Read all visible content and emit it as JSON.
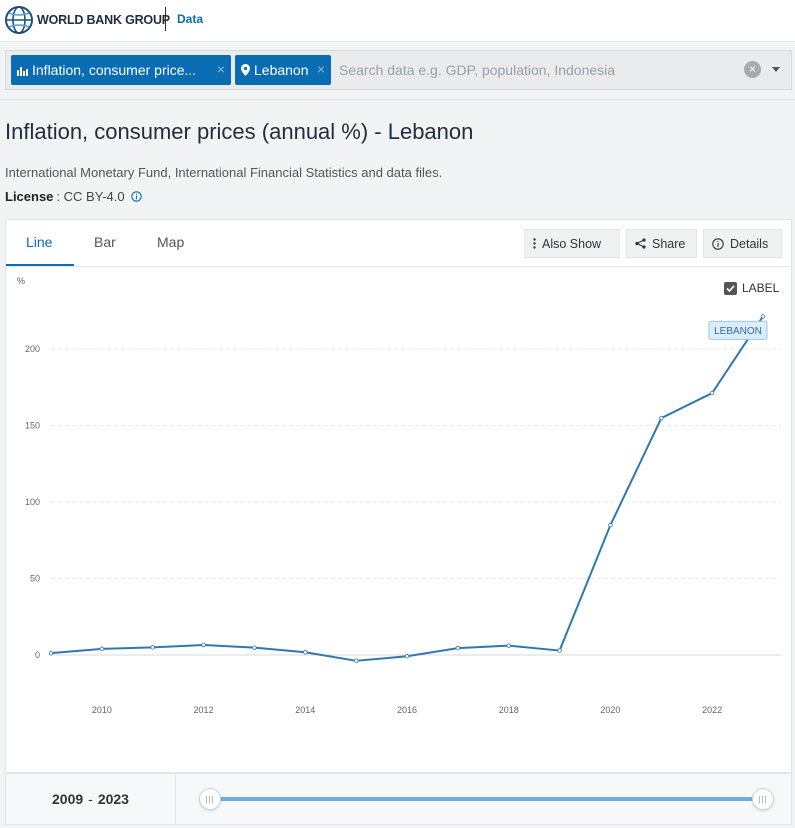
{
  "header": {
    "logo_text": "WORLD BANK GROUP",
    "section": "Data"
  },
  "search": {
    "chips": [
      {
        "label": "Inflation, consumer price...",
        "icon": "bar-chart-icon"
      },
      {
        "label": "Lebanon",
        "icon": "location-pin-icon"
      }
    ],
    "placeholder": "Search data e.g. GDP, population, Indonesia"
  },
  "page": {
    "title": "Inflation, consumer prices (annual %) - Lebanon",
    "source": "International Monetary Fund, International Financial Statistics and data files.",
    "license_label": "License",
    "license_value": ": CC BY-4.0"
  },
  "tabs": {
    "items": [
      "Line",
      "Bar",
      "Map"
    ],
    "active": "Line",
    "also_show": "Also Show",
    "share": "Share",
    "details": "Details"
  },
  "label_toggle": {
    "text": "LABEL",
    "checked": true
  },
  "colors": {
    "accent": "#0a6db3",
    "line": "#2e78b0",
    "label_bg": "#dcecf8"
  },
  "chart_data": {
    "type": "line",
    "ylabel": "%",
    "yticks": [
      0,
      50,
      100,
      150,
      200
    ],
    "xticks": [
      2010,
      2012,
      2014,
      2016,
      2018,
      2020,
      2022
    ],
    "xlim": [
      2009,
      2023
    ],
    "ylim": [
      0,
      200
    ],
    "grid": true,
    "series": [
      {
        "name": "LEBANON",
        "x": [
          2009,
          2010,
          2011,
          2012,
          2013,
          2014,
          2015,
          2016,
          2017,
          2018,
          2019,
          2020,
          2021,
          2022,
          2023
        ],
        "values": [
          1.2,
          4.0,
          5.0,
          6.5,
          4.8,
          1.8,
          -3.8,
          -0.8,
          4.5,
          6.1,
          2.9,
          84.9,
          154.8,
          171.2,
          221.3
        ]
      }
    ]
  },
  "footer": {
    "range_start": "2009",
    "range_end": "2023"
  }
}
